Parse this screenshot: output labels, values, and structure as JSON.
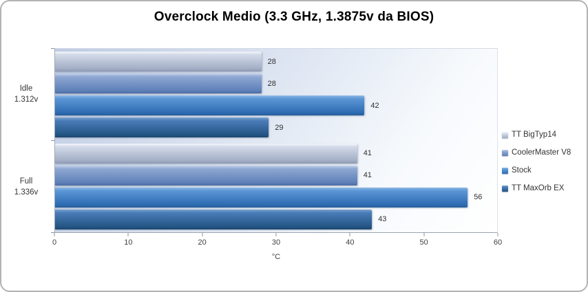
{
  "chart_data": {
    "type": "bar",
    "orientation": "horizontal",
    "title": "Overclock Medio (3.3 GHz, 1.3875v da BIOS)",
    "categories": [
      {
        "line1": "Idle",
        "line2": "1.312v"
      },
      {
        "line1": "Full",
        "line2": "1.336v"
      }
    ],
    "series": [
      {
        "name": "TT BigTyp14",
        "values": [
          28,
          41
        ],
        "color": "#b4bfd3",
        "gradient": {
          "hi": "#f4f6fa",
          "top": "#d3dae8",
          "bot": "#a2aec5",
          "edge": "#8e9ab1"
        }
      },
      {
        "name": "CoolerMaster V8",
        "values": [
          28,
          41
        ],
        "color": "#6e8cc0",
        "gradient": {
          "hi": "#c3d2ea",
          "top": "#8fa8d2",
          "bot": "#5e80b8",
          "edge": "#4d6da3"
        }
      },
      {
        "name": "Stock",
        "values": [
          42,
          56
        ],
        "color": "#3d7cc0",
        "gradient": {
          "hi": "#8db8e4",
          "top": "#5b96d6",
          "bot": "#2e6cb2",
          "edge": "#275d9b"
        }
      },
      {
        "name": "TT MaxOrb EX",
        "values": [
          29,
          43
        ],
        "color": "#2d5f96",
        "gradient": {
          "hi": "#7aa3cd",
          "top": "#4a7cb8",
          "bot": "#235584",
          "edge": "#1d4770"
        }
      }
    ],
    "xlabel": "°C",
    "xlim": [
      0,
      60
    ],
    "xticks": [
      0,
      10,
      20,
      30,
      40,
      50,
      60
    ],
    "data_labels": true,
    "grid": false,
    "legend_position": "right"
  }
}
